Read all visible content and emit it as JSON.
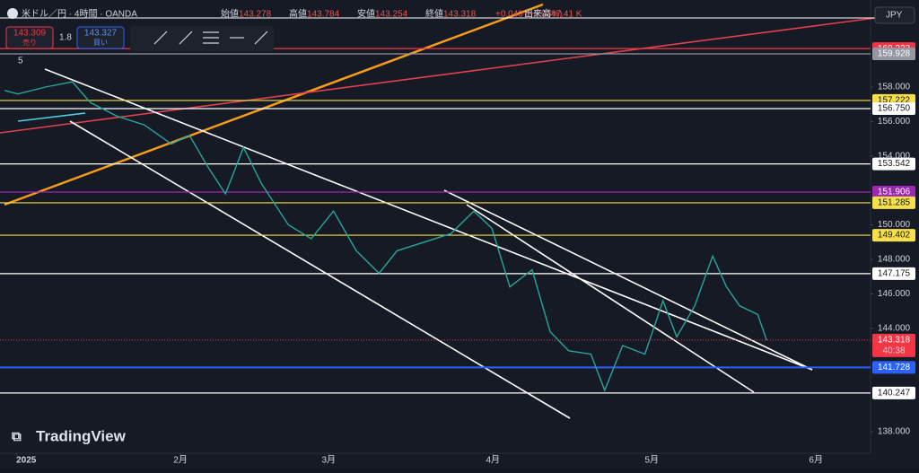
{
  "chart_data": {
    "type": "line",
    "title": "米ドル／円 · 4時間 · OANDA",
    "ohlc": [
      {
        "name": "始値",
        "value": "143.278"
      },
      {
        "name": "高値",
        "value": "143.784"
      },
      {
        "name": "安値",
        "value": "143.254"
      },
      {
        "name": "終値",
        "value": "143.318"
      }
    ],
    "change": "+0.040 (+0.03%)",
    "volume_name": "出来高",
    "volume": "47.41 K",
    "sell": {
      "price": "143.309",
      "label": "売り"
    },
    "spread": "1.8",
    "buy": {
      "price": "143.327",
      "label": "買い"
    },
    "currency": "JPY",
    "indicator_count": "5",
    "brand": "TradingView",
    "color": "#26a69a",
    "x": [
      -2.2,
      0.3,
      5.5,
      10.6,
      14,
      19.1,
      24.2,
      29.3,
      32.7,
      36.1,
      39.5,
      42.9,
      46.3,
      51.4,
      55.7,
      59.9,
      64.2,
      68.5,
      71.9,
      77,
      82.1,
      86.4,
      89.8,
      93.2,
      97.4,
      100.8,
      104.3,
      108.5,
      111.1,
      114.5,
      118.7,
      122.1,
      124.7,
      128.1,
      131.5,
      134.1,
      136.6,
      140,
      141.7
    ],
    "values": [
      157.8,
      157.6,
      158,
      158.3,
      157.1,
      156.3,
      155.8,
      154.7,
      155.2,
      153.4,
      151.8,
      154.5,
      152.4,
      150,
      149.2,
      150.8,
      148.5,
      147.2,
      148.5,
      149,
      149.5,
      150.8,
      149.8,
      146.4,
      147.4,
      143.8,
      142.7,
      142.5,
      140.4,
      143,
      142.5,
      145.6,
      143.5,
      145.3,
      148.2,
      146.4,
      145.3,
      144.8,
      143.3
    ],
    "xlim": [
      -3.07,
      161.3
    ],
    "xticks": [
      {
        "value": 0,
        "label": "2025"
      },
      {
        "value": 31,
        "label": "2月"
      },
      {
        "value": 59,
        "label": "3月"
      },
      {
        "value": 90,
        "label": "4月"
      },
      {
        "value": 120,
        "label": "5月"
      },
      {
        "value": 151,
        "label": "6月"
      }
    ],
    "ylim": [
      136.75,
      163.052
    ],
    "yticks": [
      {
        "value": 138,
        "label": "138.000"
      },
      {
        "value": 144,
        "label": "144.000"
      },
      {
        "value": 146,
        "label": "146.000"
      },
      {
        "value": 148,
        "label": "148.000"
      },
      {
        "value": 150,
        "label": "150.000"
      },
      {
        "value": 154,
        "label": "154.000"
      },
      {
        "value": 156,
        "label": "156.000"
      },
      {
        "value": 158,
        "label": "158.000"
      }
    ],
    "levels": [
      {
        "value": 160.233,
        "color": "#f23645"
      },
      {
        "value": 159.928,
        "color": "#9598a1"
      },
      {
        "value": 157.222,
        "color": "#f5e04a"
      },
      {
        "value": 156.75,
        "label": "156.750",
        "color": "#ffffff"
      },
      {
        "value": 153.542,
        "color": "#ffffff"
      },
      {
        "value": 151.906,
        "color": "#9c27b0"
      },
      {
        "value": 151.285,
        "color": "#f5e04a"
      },
      {
        "value": 149.402,
        "color": "#f5e04a"
      },
      {
        "value": 147.175,
        "color": "#ffffff"
      },
      {
        "value": 141.728,
        "color": "#2962ff"
      },
      {
        "value": 140.247,
        "color": "#ffffff"
      }
    ],
    "last": {
      "value": 143.318,
      "countdown": "40:38",
      "color": "#f23645"
    }
  }
}
